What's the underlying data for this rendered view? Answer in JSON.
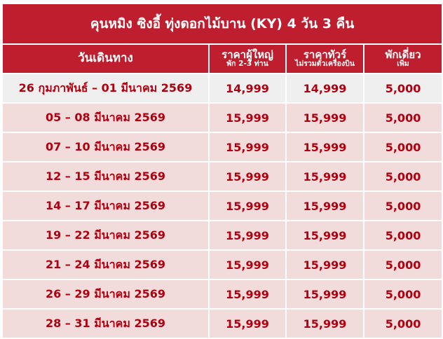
{
  "title": "คุนหมิง ซิงอี้ ทุ่งดอกไม้บาน (KY) 4 วัน 3 คืน",
  "headers": {
    "date": "วันเดินทาง",
    "adult": "ราคาผู้ใหญ่",
    "adult_sub": "พัก 2-3 ท่าน",
    "tour": "ราคาทัวร์",
    "tour_sub": "ไม่รวมตั๋วเครื่องบิน",
    "single": "พักเดี่ยว",
    "single_sub": "เพิ่ม"
  },
  "colors": {
    "header_bg": "#be1e2d",
    "text": "#b00010",
    "row_bg": "#f2dbdb",
    "first_row_bg": "#efefef"
  },
  "rows": [
    {
      "date": "26 กุมภาพันธ์ – 01 มีนาคม 2569",
      "adult": "14,999",
      "tour": "14,999",
      "single": "5,000"
    },
    {
      "date": "05 – 08 มีนาคม 2569",
      "adult": "15,999",
      "tour": "15,999",
      "single": "5,000"
    },
    {
      "date": "07 – 10 มีนาคม 2569",
      "adult": "15,999",
      "tour": "15,999",
      "single": "5,000"
    },
    {
      "date": "12 – 15 มีนาคม 2569",
      "adult": "15,999",
      "tour": "15,999",
      "single": "5,000"
    },
    {
      "date": "14 – 17 มีนาคม 2569",
      "adult": "15,999",
      "tour": "15,999",
      "single": "5,000"
    },
    {
      "date": "19 – 22 มีนาคม 2569",
      "adult": "15,999",
      "tour": "15,999",
      "single": "5,000"
    },
    {
      "date": "21 – 24 มีนาคม 2569",
      "adult": "15,999",
      "tour": "15,999",
      "single": "5,000"
    },
    {
      "date": "26 – 29 มีนาคม 2569",
      "adult": "15,999",
      "tour": "15,999",
      "single": "5,000"
    },
    {
      "date": "28 – 31 มีนาคม 2569",
      "adult": "15,999",
      "tour": "15,999",
      "single": "5,000"
    }
  ]
}
